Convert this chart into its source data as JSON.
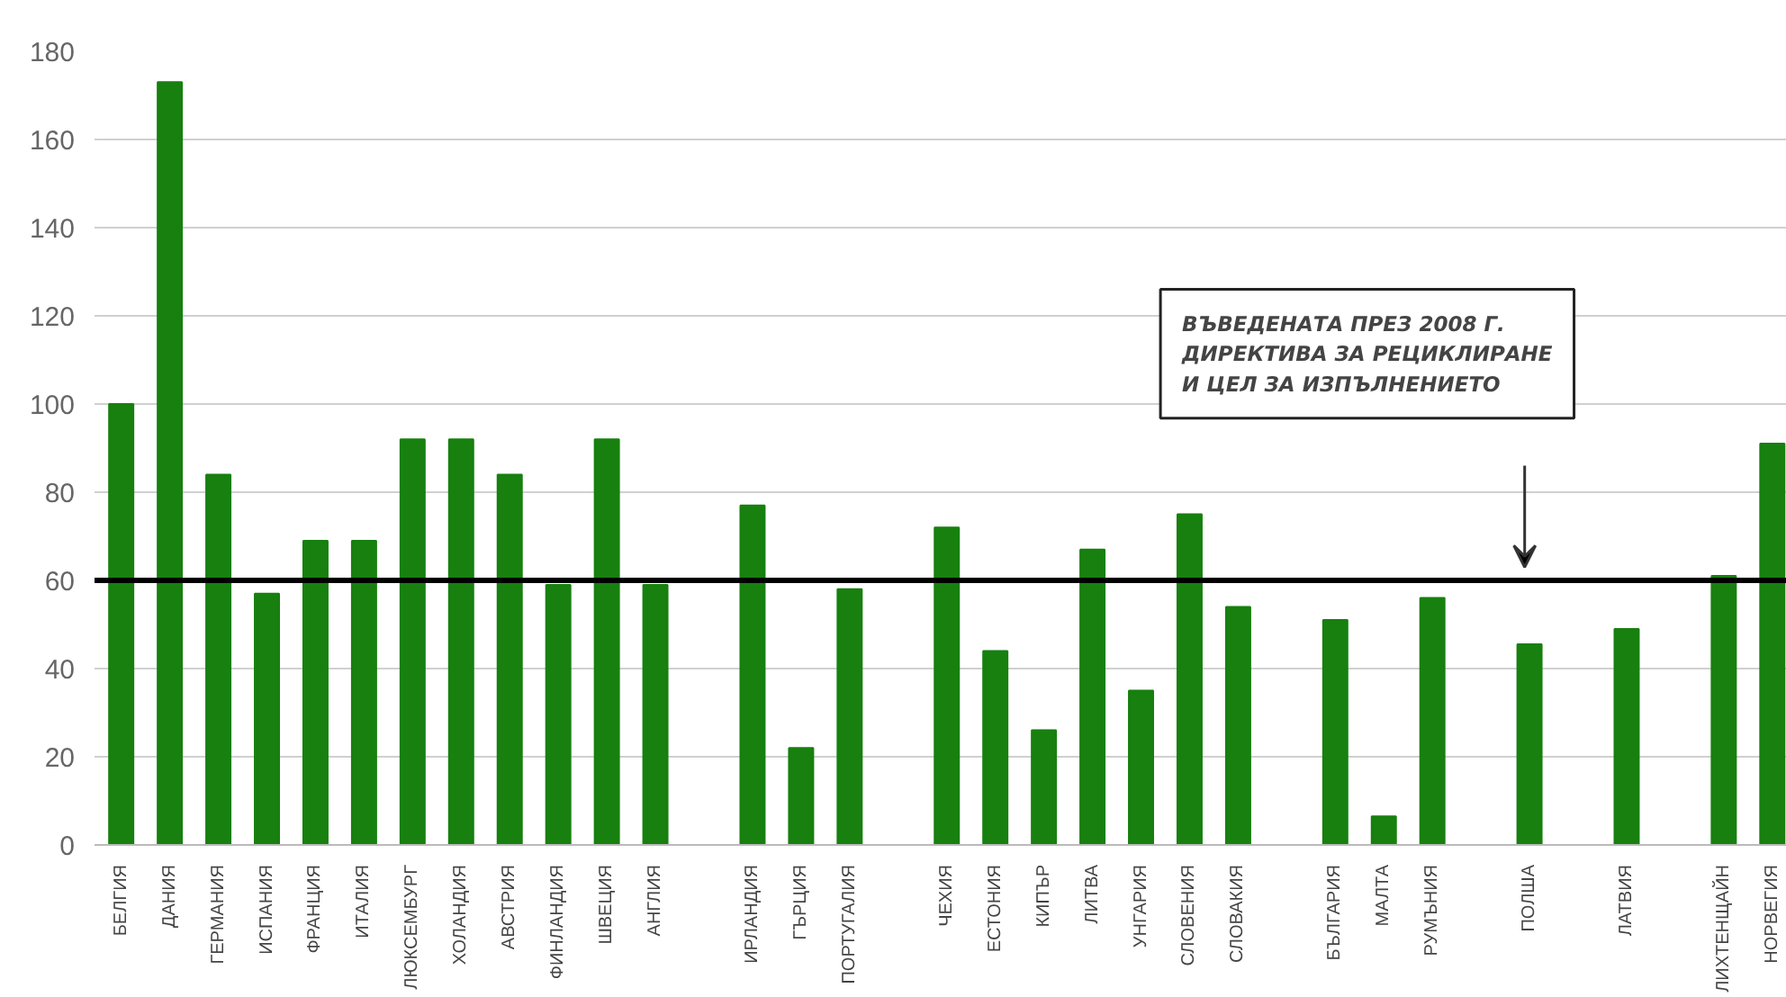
{
  "chart_data": {
    "type": "bar",
    "categories": [
      "БЕЛГИЯ",
      "ДАНИЯ",
      "ГЕРМАНИЯ",
      "ИСПАНИЯ",
      "ФРАНЦИЯ",
      "ИТАЛИЯ",
      "ЛЮКСЕМБУРГ",
      "ХОЛАНДИЯ",
      "АВСТРИЯ",
      "ФИНЛАНДИЯ",
      "ШВЕЦИЯ",
      "АНГЛИЯ",
      null,
      "ИРЛАНДИЯ",
      "ГЪРЦИЯ",
      "ПОРТУГАЛИЯ",
      null,
      "ЧЕХИЯ",
      "ЕСТОНИЯ",
      "КИПЪР",
      "ЛИТВА",
      "УНГАРИЯ",
      "СЛОВЕНИЯ",
      "СЛОВАКИЯ",
      null,
      "БЪЛГАРИЯ",
      "МАЛТА",
      "РУМЪНИЯ",
      null,
      "ПОЛША",
      null,
      "ЛАТВИЯ",
      null,
      "ЛИХТЕНЩАЙН",
      "НОРВЕГИЯ"
    ],
    "values": [
      100,
      173,
      84,
      57,
      69,
      69,
      92,
      92,
      84,
      59,
      92,
      59,
      null,
      77,
      22,
      58,
      null,
      72,
      44,
      26,
      67,
      35,
      75,
      54,
      null,
      51,
      6.5,
      56,
      null,
      45.5,
      null,
      49,
      null,
      61,
      91
    ],
    "color": "#17800f",
    "ylim": [
      0,
      180
    ],
    "yticks": [
      0,
      20,
      40,
      60,
      80,
      100,
      120,
      140,
      160,
      180
    ],
    "grid": "y",
    "ref_lines": [
      {
        "axis": "y",
        "value": 60,
        "color": "#000000"
      }
    ],
    "annotations": [
      "ВЪВЕДЕНАТА ПРЕЗ 2008 Г.\nДИРЕКТИВА ЗА РЕЦИКЛИРАНЕ\nИ ЦЕЛ ЗА ИЗПЪЛНЕНИЕТО"
    ]
  }
}
